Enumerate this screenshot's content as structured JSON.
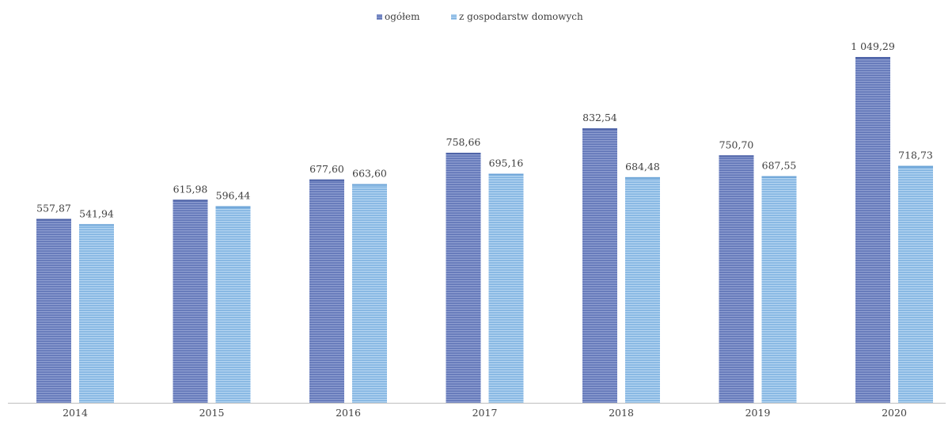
{
  "chart_data": {
    "type": "bar",
    "categories": [
      "2014",
      "2015",
      "2016",
      "2017",
      "2018",
      "2019",
      "2020"
    ],
    "series": [
      {
        "name": "ogółem",
        "color": "#6b80bf",
        "values": [
          557.87,
          615.98,
          677.6,
          758.66,
          832.54,
          750.7,
          1049.29
        ],
        "labels": [
          "557,87",
          "615,98",
          "677,60",
          "758,66",
          "832,54",
          "750,70",
          "1 049,29"
        ]
      },
      {
        "name": "z gospodarstw domowych",
        "color": "#8fbfe8",
        "values": [
          541.94,
          596.44,
          663.6,
          695.16,
          684.48,
          687.55,
          718.73
        ],
        "labels": [
          "541,94",
          "596,44",
          "663,60",
          "695,16",
          "684,48",
          "687,55",
          "718,73"
        ]
      }
    ],
    "title": "",
    "xlabel": "",
    "ylabel": "",
    "ylim": [
      0,
      1150
    ],
    "grid": false,
    "legend_position": "top-center",
    "bar_texture": "horizontal-stripes"
  }
}
